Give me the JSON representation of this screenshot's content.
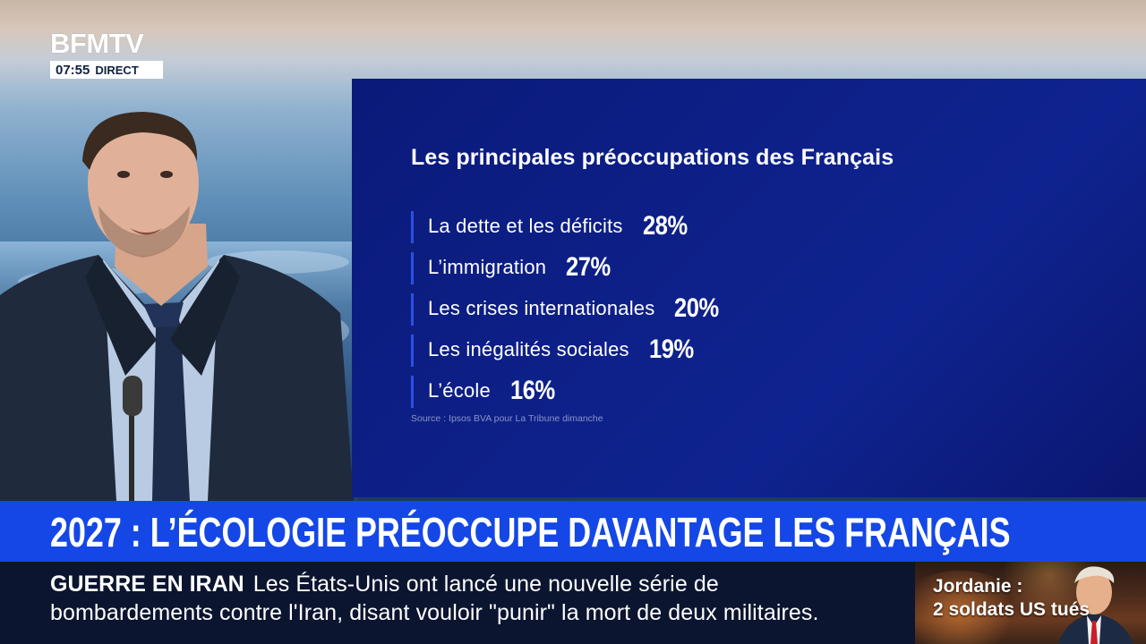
{
  "channel": {
    "logo": "BFMTV",
    "time": "07:55",
    "live_label": "DIRECT"
  },
  "graphic": {
    "title": "Les principales préoccupations des Français",
    "items": [
      {
        "label": "La dette et les déficits",
        "value": "28%"
      },
      {
        "label": "L’immigration",
        "value": "27%"
      },
      {
        "label": "Les crises internationales",
        "value": "20%"
      },
      {
        "label": "Les inégalités sociales",
        "value": "19%"
      },
      {
        "label": "L’école",
        "value": "16%"
      }
    ],
    "source": "Source : Ipsos BVA pour La Tribune dimanche"
  },
  "headline": "2027 : L’ÉCOLOGIE PRÉOCCUPE DAVANTAGE LES FRANÇAIS",
  "ticker": {
    "kicker": "GUERRE EN IRAN",
    "line1": "Les États-Unis ont lancé une nouvelle série de",
    "line2": "bombardements contre l'Iran, disant vouloir \"punir\" la mort de deux militaires."
  },
  "teaser": {
    "line1": "Jordanie :",
    "line2": "2 soldats US tués"
  },
  "colors": {
    "panel": "#0f2190",
    "headline_band": "#1447e6",
    "ticker_bg": "#0b1530",
    "accent_bar": "#2d50e0"
  }
}
